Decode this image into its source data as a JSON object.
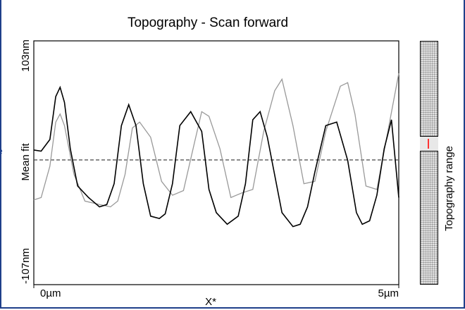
{
  "title": "Topography - Scan forward",
  "y_axis": {
    "top_label": "103nm",
    "middle_label": "Mean fit",
    "bottom_label": "-107nm"
  },
  "x_axis": {
    "left_label": "0µm",
    "center_label": "X*",
    "right_label": "5µm"
  },
  "colorbar": {
    "label": "Topography range"
  },
  "left_cutoff": {
    "a": "e",
    "b": "-",
    "c": "-"
  },
  "colors": {
    "frame": "#1f3f8a",
    "forward_line": "#000000",
    "backward_line": "#999999",
    "marker": "#ff3333"
  },
  "chart_data": {
    "type": "line",
    "title": "Topography - Scan forward",
    "xlabel": "X*",
    "ylabel": "Mean fit",
    "xlim": [
      0,
      5
    ],
    "ylim": [
      -107,
      103
    ],
    "x_tick_labels": [
      "0µm",
      "5µm"
    ],
    "y_tick_labels": [
      "103nm",
      "-107nm"
    ],
    "mean_fit": 0,
    "series": [
      {
        "x": [
          0,
          0.1,
          0.22,
          0.3,
          0.36,
          0.42,
          0.5,
          0.6,
          0.75,
          0.9,
          1.0,
          1.1,
          1.2,
          1.3,
          1.4,
          1.5,
          1.6,
          1.72,
          1.8,
          1.9,
          2.0,
          2.15,
          2.3,
          2.4,
          2.5,
          2.65,
          2.8,
          2.9,
          3.0,
          3.1,
          3.2,
          3.4,
          3.55,
          3.65,
          3.75,
          3.85,
          4.0,
          4.15,
          4.3,
          4.42,
          4.5,
          4.6,
          4.7,
          4.8,
          4.9,
          5.0
        ],
        "values": [
          9,
          8,
          18,
          55,
          63,
          50,
          10,
          -22,
          -32,
          -40,
          -38,
          -20,
          30,
          48,
          30,
          -20,
          -48,
          -50,
          -46,
          -20,
          30,
          42,
          25,
          -25,
          -45,
          -55,
          -48,
          -20,
          35,
          42,
          20,
          -45,
          -57,
          -55,
          -40,
          -10,
          30,
          33,
          0,
          -45,
          -55,
          -52,
          -30,
          10,
          35,
          -32
        ]
      },
      {
        "x": [
          0,
          0.1,
          0.22,
          0.3,
          0.36,
          0.42,
          0.55,
          0.7,
          0.9,
          1.05,
          1.15,
          1.25,
          1.35,
          1.45,
          1.6,
          1.75,
          1.9,
          2.05,
          2.2,
          2.3,
          2.4,
          2.55,
          2.7,
          2.85,
          3.0,
          3.15,
          3.3,
          3.4,
          3.55,
          3.7,
          3.85,
          4.0,
          4.2,
          4.3,
          4.4,
          4.55,
          4.7,
          4.85,
          5.0
        ],
        "values": [
          -34,
          -32,
          -5,
          33,
          40,
          30,
          -12,
          -35,
          -38,
          -40,
          -35,
          -12,
          28,
          33,
          20,
          -18,
          -30,
          -26,
          15,
          42,
          38,
          10,
          -32,
          -28,
          -25,
          25,
          60,
          70,
          30,
          -20,
          -18,
          25,
          64,
          67,
          40,
          -22,
          -25,
          25,
          75
        ]
      }
    ]
  }
}
